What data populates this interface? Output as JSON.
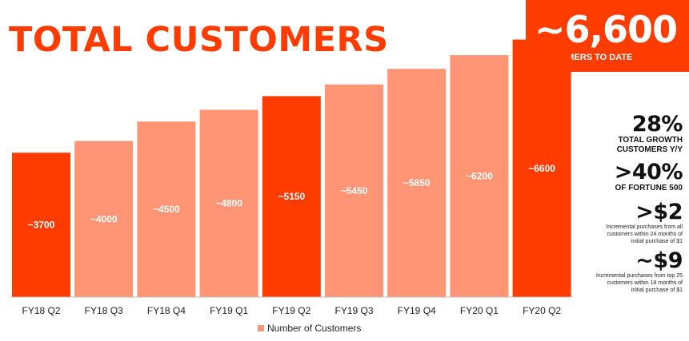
{
  "header": {
    "title": "TOTAL CUSTOMERS"
  },
  "kpi": {
    "value": "~6,600",
    "label": "CUSTOMERS TO DATE"
  },
  "stats": [
    {
      "value": "28%",
      "label": "TOTAL GROWTH CUSTOMERS Y/Y"
    },
    {
      "value": ">40%",
      "label": "OF FORTUNE 500"
    },
    {
      "value": ">$2",
      "note": "Incremental purchases from all customers within 24 months of initial purchase of $1"
    },
    {
      "value": "~$9",
      "note": "Incremental purchases from top 25 customers within 18 months of initial purchase of $1"
    }
  ],
  "colors": {
    "accent": "#ff3c00",
    "light": "#ff9574"
  },
  "chart_data": {
    "type": "bar",
    "categories": [
      "FY18 Q2",
      "FY18 Q3",
      "FY18 Q4",
      "FY19 Q1",
      "FY19 Q2",
      "FY19 Q3",
      "FY19 Q4",
      "FY20 Q1",
      "FY20 Q2"
    ],
    "series": [
      {
        "name": "Number of Customers",
        "values": [
          3700,
          4000,
          4500,
          4800,
          5150,
          5450,
          5850,
          6200,
          6600
        ],
        "labels": [
          "~3700",
          "~4000",
          "~4500",
          "~4800",
          "~5150",
          "~5450",
          "~5850",
          "~6200",
          "~6600"
        ],
        "highlighted": [
          true,
          false,
          false,
          false,
          true,
          false,
          false,
          false,
          true
        ]
      }
    ],
    "ylim": [
      0,
      7000
    ],
    "legend": "bottom-center",
    "grid": false
  }
}
